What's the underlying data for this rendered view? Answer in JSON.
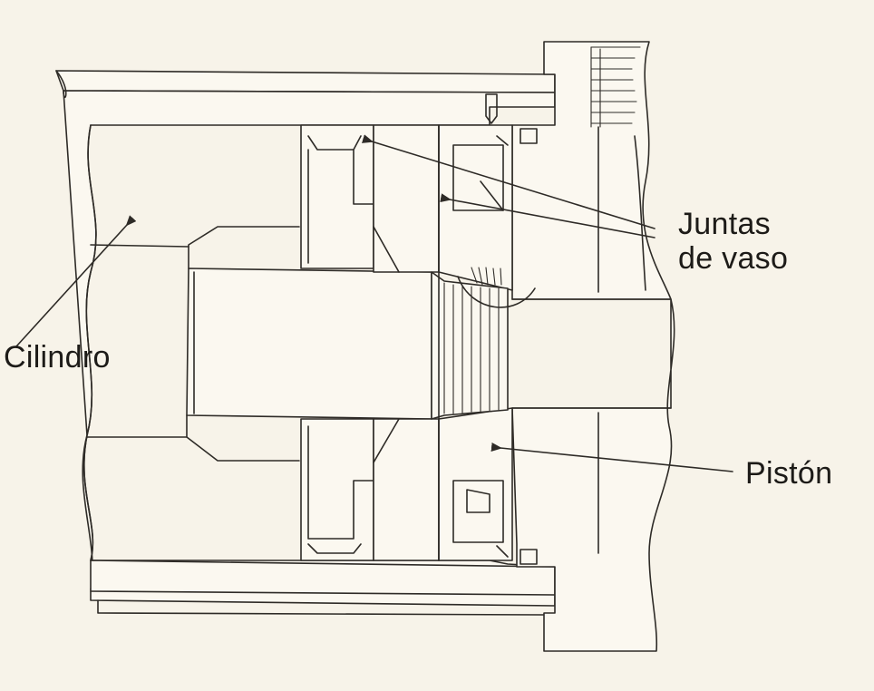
{
  "labels": {
    "cylinder": "Cilindro",
    "cup_seals_line1": "Juntas",
    "cup_seals_line2": "de vaso",
    "piston": "Pistón"
  },
  "colors": {
    "line": "#2e2b27",
    "background": "#f7f3e9"
  }
}
